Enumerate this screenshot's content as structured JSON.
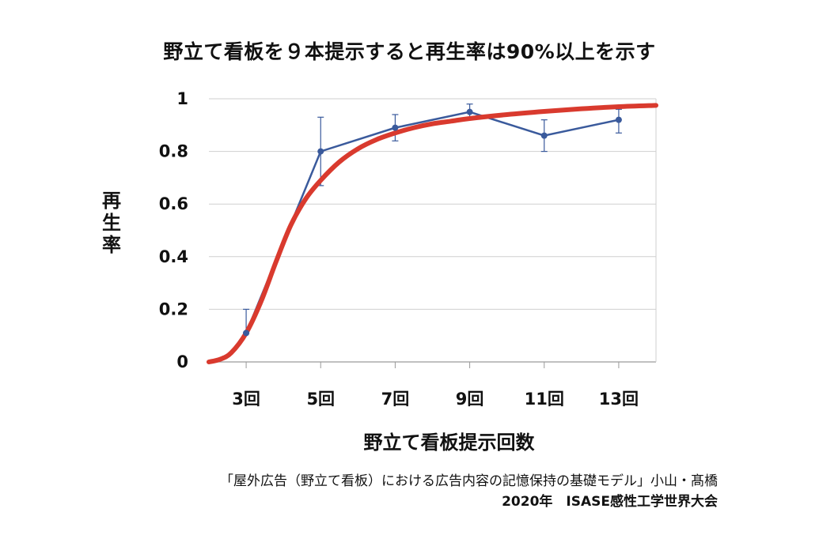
{
  "chart_data": {
    "type": "line",
    "title": "野立て看板を９本提示すると再生率は90%以上を示す",
    "xlabel": "野立て看板提示回数",
    "ylabel": "再生率",
    "xlim": [
      2,
      14
    ],
    "ylim": [
      0,
      1
    ],
    "grid": true,
    "legend": "none",
    "x_ticks": [
      {
        "value": 3,
        "label": "3回"
      },
      {
        "value": 5,
        "label": "5回"
      },
      {
        "value": 7,
        "label": "7回"
      },
      {
        "value": 9,
        "label": "9回"
      },
      {
        "value": 11,
        "label": "11回"
      },
      {
        "value": 13,
        "label": "13回"
      }
    ],
    "y_ticks": [
      {
        "value": 0,
        "label": "0"
      },
      {
        "value": 0.2,
        "label": "0.2"
      },
      {
        "value": 0.4,
        "label": "0.4"
      },
      {
        "value": 0.6,
        "label": "0.6"
      },
      {
        "value": 0.8,
        "label": "0.8"
      },
      {
        "value": 1,
        "label": "1"
      }
    ],
    "series": [
      {
        "kind": "observed",
        "color": "#3a5a9c",
        "x": [
          3,
          5,
          7,
          9,
          11,
          13
        ],
        "y": [
          0.11,
          0.8,
          0.89,
          0.95,
          0.86,
          0.92
        ],
        "err_low": [
          0.11,
          0.67,
          0.84,
          0.92,
          0.8,
          0.87
        ],
        "err_high": [
          0.2,
          0.93,
          0.94,
          0.98,
          0.92,
          0.96
        ]
      },
      {
        "kind": "fitted",
        "color": "#d93a2e",
        "x": [
          2.0,
          2.3,
          2.6,
          3.0,
          3.4,
          3.8,
          4.2,
          4.6,
          5.0,
          5.5,
          6.0,
          6.5,
          7.0,
          7.5,
          8.0,
          8.5,
          9.0,
          10.0,
          11.0,
          12.0,
          13.0,
          14.0
        ],
        "y": [
          0.0,
          0.01,
          0.035,
          0.11,
          0.23,
          0.38,
          0.52,
          0.62,
          0.69,
          0.76,
          0.81,
          0.845,
          0.87,
          0.89,
          0.905,
          0.915,
          0.925,
          0.94,
          0.952,
          0.962,
          0.97,
          0.975
        ]
      }
    ]
  },
  "citation": {
    "line1": "「屋外広告（野立て看板）における広告内容の記憶保持の基礎モデル」小山・髙橋",
    "line2": "2020年　ISASE感性工学世界大会"
  }
}
